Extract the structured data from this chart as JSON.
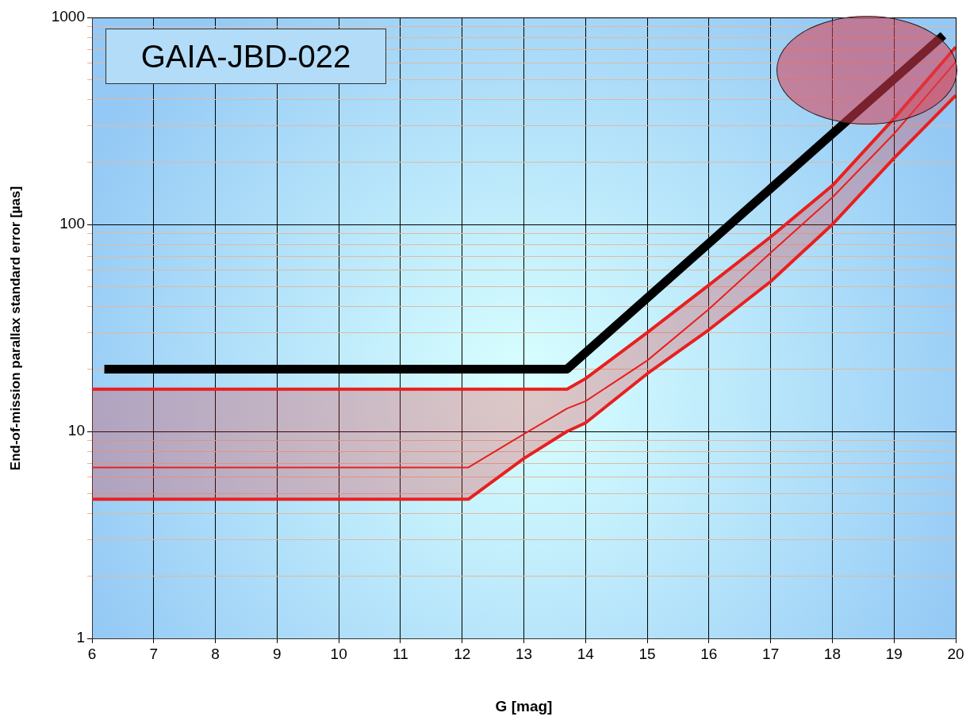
{
  "chart_data": {
    "type": "line",
    "xlabel": "G [mag]",
    "ylabel": "End-of-mission  parallax  standard  error [µas]",
    "annotations": [
      "GAIA-JBD-022"
    ],
    "xlim": [
      6,
      20
    ],
    "xticks": [
      6,
      7,
      8,
      9,
      10,
      11,
      12,
      13,
      14,
      15,
      16,
      17,
      18,
      19,
      20
    ],
    "ylim": [
      1,
      1000
    ],
    "yticks": [
      1,
      {
        "value": 2,
        "label": null
      },
      {
        "value": 3,
        "label": null
      },
      {
        "value": 4,
        "label": null
      },
      {
        "value": 5,
        "label": null
      },
      {
        "value": 6,
        "label": null
      },
      {
        "value": 7,
        "label": null
      },
      {
        "value": 8,
        "label": null
      },
      {
        "value": 9,
        "label": null
      },
      10,
      {
        "value": 20,
        "label": null
      },
      {
        "value": 30,
        "label": null
      },
      {
        "value": 40,
        "label": null
      },
      {
        "value": 50,
        "label": null
      },
      {
        "value": 60,
        "label": null
      },
      {
        "value": 70,
        "label": null
      },
      {
        "value": 80,
        "label": null
      },
      {
        "value": 90,
        "label": null
      },
      100,
      {
        "value": 200,
        "label": null
      },
      {
        "value": 300,
        "label": null
      },
      {
        "value": 400,
        "label": null
      },
      {
        "value": 500,
        "label": null
      },
      {
        "value": 600,
        "label": null
      },
      {
        "value": 700,
        "label": null
      },
      {
        "value": 800,
        "label": null
      },
      {
        "value": 900,
        "label": null
      },
      1000
    ],
    "log": "y",
    "grid": true,
    "legend": false,
    "marker": "none",
    "line_style": "solid",
    "series": [
      {
        "color": "#e8201e",
        "x": [
          6,
          12.1,
          13,
          13.7,
          14,
          15,
          16,
          17,
          18,
          19,
          20
        ],
        "values": [
          6.7,
          6.7,
          9.7,
          12.9,
          14,
          22,
          39,
          73,
          135,
          274,
          610
        ],
        "lower": [
          4.7,
          4.7,
          7.4,
          10,
          11,
          19,
          31,
          53,
          100,
          209,
          420
        ],
        "upper": [
          16,
          16,
          16,
          16,
          18,
          30,
          51,
          87,
          154,
          325,
          720
        ]
      },
      {
        "color": "#e8201e",
        "x": [
          6,
          12.1,
          13,
          13.7,
          14,
          15,
          16,
          17,
          18,
          19,
          20
        ],
        "values": [
          16,
          16,
          16,
          16,
          18,
          30,
          51,
          87,
          154,
          325,
          720
        ]
      },
      {
        "color": "#e8201e",
        "x": [
          6,
          12.1,
          13,
          13.7,
          14,
          15,
          16,
          17,
          18,
          19,
          20
        ],
        "values": [
          4.7,
          4.7,
          7.4,
          10,
          11,
          19,
          31,
          53,
          100,
          209,
          420
        ]
      },
      {
        "color": "#000000",
        "x": [
          6.2,
          13.7,
          19.8
        ],
        "values": [
          20,
          20,
          820
        ]
      }
    ]
  }
}
